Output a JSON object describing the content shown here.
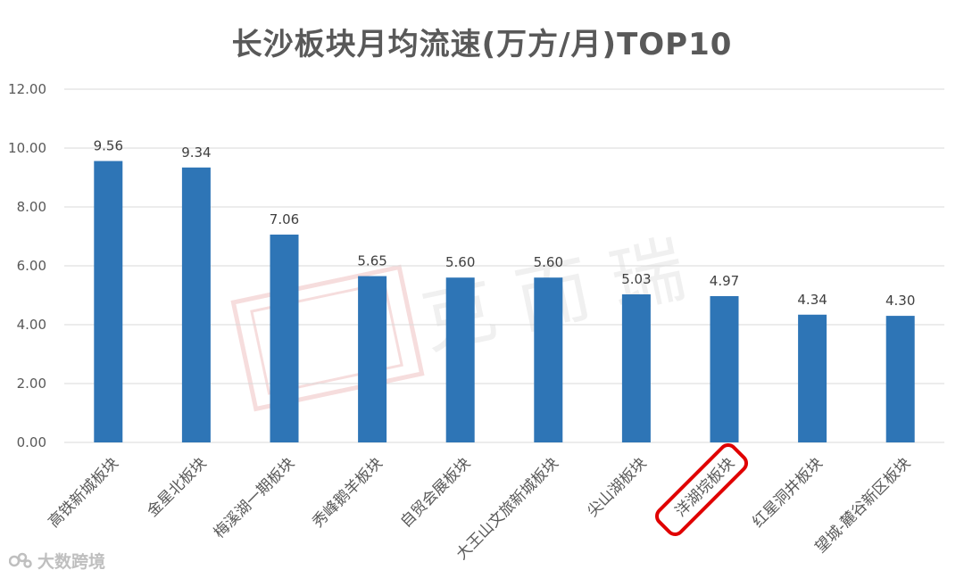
{
  "chart_data": {
    "type": "bar",
    "title": "长沙板块月均流速(万方/月)TOP10",
    "categories": [
      "高铁新城板块",
      "金星北板块",
      "梅溪湖一期板块",
      "秀峰鹅羊板块",
      "自贸会展板块",
      "大王山文旅新城板块",
      "尖山湖板块",
      "洋湖垸板块",
      "红星洞井板块",
      "望城-麓谷新区板块"
    ],
    "values": [
      9.56,
      9.34,
      7.06,
      5.65,
      5.6,
      5.6,
      5.03,
      4.97,
      4.34,
      4.3
    ],
    "data_labels": [
      "9.56",
      "9.34",
      "7.06",
      "5.65",
      "5.60",
      "5.60",
      "5.03",
      "4.97",
      "4.34",
      "4.30"
    ],
    "y_ticks": [
      "0.00",
      "2.00",
      "4.00",
      "6.00",
      "8.00",
      "10.00",
      "12.00"
    ],
    "ylim": [
      0,
      12
    ],
    "grid": true,
    "highlight_category": "洋湖垸板块",
    "colors": {
      "bar": "#2e75b6",
      "grid": "#d9d9d9",
      "highlight": "#e00000"
    }
  },
  "footer": {
    "brand": "大数跨境"
  }
}
